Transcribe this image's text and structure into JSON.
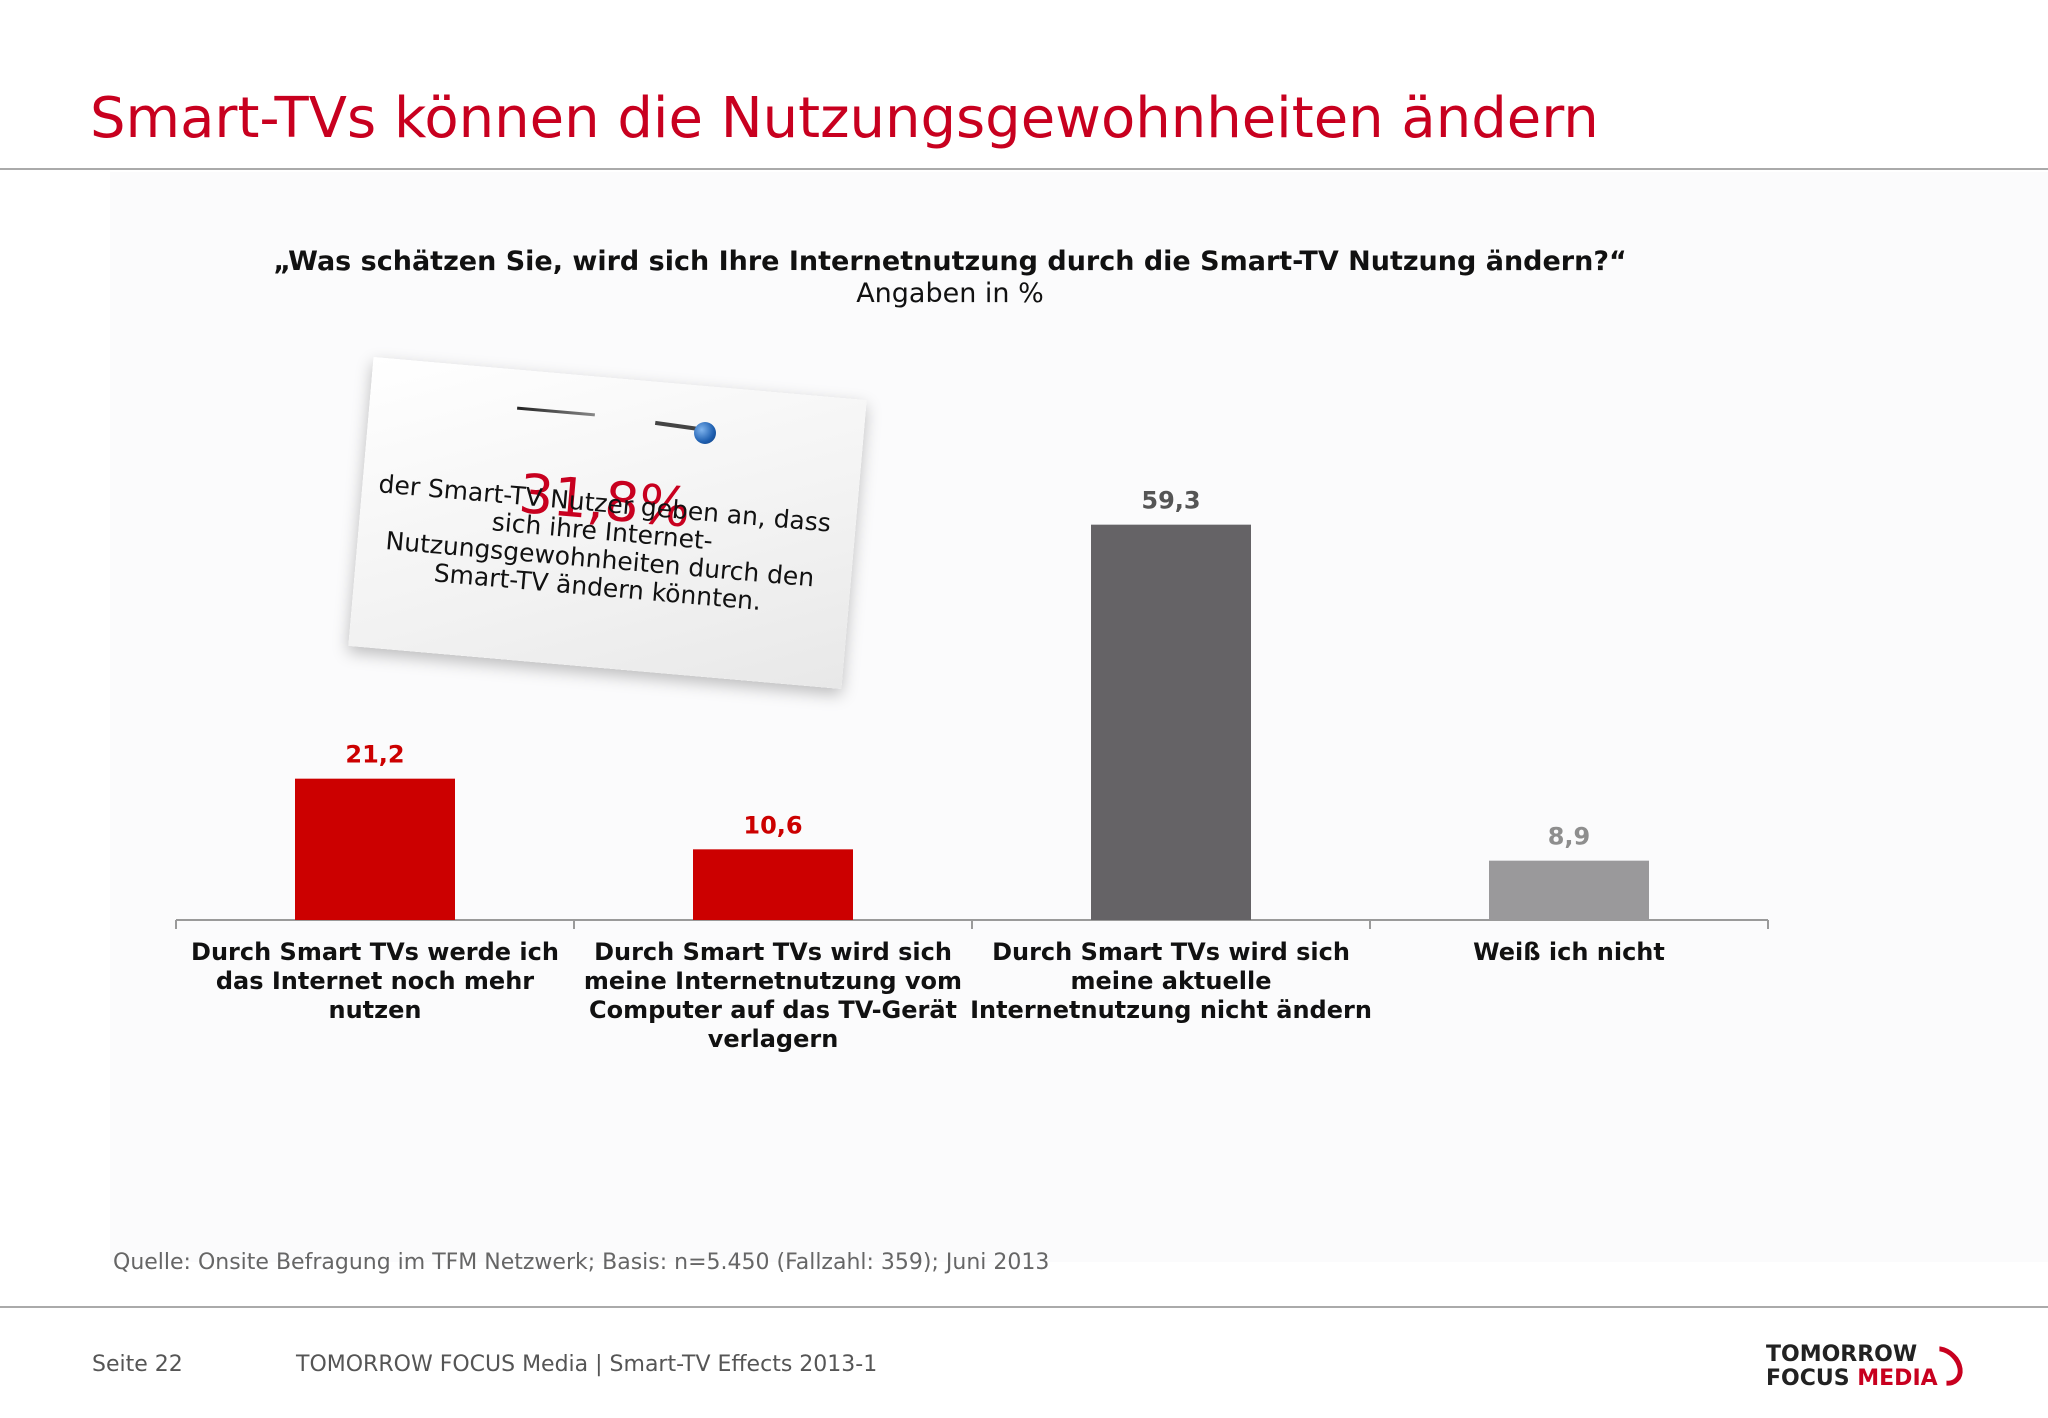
{
  "slide": {
    "title": "Smart-TVs können die Nutzungsgewohnheiten ändern",
    "question": "„Was schätzen Sie, wird sich Ihre Internetnutzung durch die Smart-TV Nutzung ändern?“",
    "question_sub": "Angaben in %",
    "source": "Quelle: Onsite Befragung im TFM Netzwerk; Basis: n=5.450 (Fallzahl: 359); Juni 2013",
    "footer_page": "Seite 22",
    "footer_center": "TOMORROW FOCUS Media  |  Smart-TV Effects 2013-1",
    "logo_line1": "TOMORROW",
    "logo_focus": "FOCUS",
    "logo_media": "MEDIA"
  },
  "note": {
    "big_value": "31,8%",
    "text": "der Smart-TV Nutzer geben an, dass sich ihre Internet-Nutzungsgewohnheiten durch den Smart-TV ändern könnten."
  },
  "chart_data": {
    "type": "bar",
    "title": "„Was schätzen Sie, wird sich Ihre Internetnutzung durch die Smart-TV Nutzung ändern?“",
    "subtitle": "Angaben in %",
    "categories": [
      [
        "Durch Smart TVs werde ich",
        "das Internet noch mehr",
        "nutzen"
      ],
      [
        "Durch Smart TVs wird sich",
        "meine Internetnutzung vom",
        "Computer auf das TV-Gerät",
        "verlagern"
      ],
      [
        "Durch Smart TVs wird sich",
        "meine aktuelle",
        "Internetnutzung nicht ändern"
      ],
      [
        "Weiß ich nicht"
      ]
    ],
    "values": [
      21.2,
      10.6,
      59.3,
      8.9
    ],
    "value_labels": [
      "21,2",
      "10,6",
      "59,3",
      "8,9"
    ],
    "bar_colors": [
      "#cc0000",
      "#cc0000",
      "#656366",
      "#9a999b"
    ],
    "label_colors": [
      "#cc0000",
      "#cc0000",
      "#555555",
      "#8e8e8e"
    ],
    "ylim": [
      0,
      60
    ],
    "grid": false,
    "legend": "none"
  }
}
